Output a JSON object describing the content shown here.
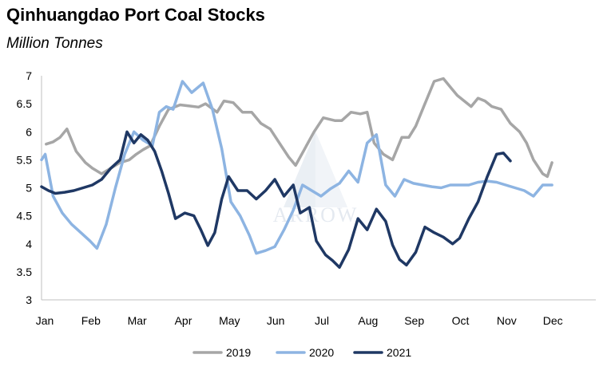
{
  "chart_data": {
    "type": "line",
    "title": "Qinhuangdao Port Coal Stocks",
    "subtitle": "Million Tonnes",
    "watermark": "ARROW",
    "xlabel": "",
    "ylabel": "",
    "ylim": [
      3,
      7
    ],
    "yticks": [
      "3",
      "3.5",
      "4",
      "4.5",
      "5",
      "5.5",
      "6",
      "6.5",
      "7"
    ],
    "xticks": [
      "Jan",
      "Feb",
      "Mar",
      "Apr",
      "May",
      "Jun",
      "Jul",
      "Aug",
      "Sep",
      "Oct",
      "Nov",
      "Dec"
    ],
    "grid": false,
    "legend": "bottom",
    "series": [
      {
        "name": "2019",
        "color": "#a6a6a6",
        "points": [
          [
            0.1,
            5.78
          ],
          [
            0.25,
            5.82
          ],
          [
            0.4,
            5.9
          ],
          [
            0.55,
            6.05
          ],
          [
            0.75,
            5.65
          ],
          [
            0.95,
            5.45
          ],
          [
            1.1,
            5.35
          ],
          [
            1.3,
            5.25
          ],
          [
            1.5,
            5.35
          ],
          [
            1.7,
            5.45
          ],
          [
            1.9,
            5.5
          ],
          [
            2.05,
            5.6
          ],
          [
            2.2,
            5.68
          ],
          [
            2.35,
            5.75
          ],
          [
            2.55,
            6.1
          ],
          [
            2.75,
            6.4
          ],
          [
            3.0,
            6.48
          ],
          [
            3.2,
            6.46
          ],
          [
            3.4,
            6.44
          ],
          [
            3.55,
            6.5
          ],
          [
            3.8,
            6.35
          ],
          [
            3.95,
            6.55
          ],
          [
            4.15,
            6.52
          ],
          [
            4.35,
            6.35
          ],
          [
            4.55,
            6.35
          ],
          [
            4.75,
            6.15
          ],
          [
            4.95,
            6.05
          ],
          [
            5.15,
            5.8
          ],
          [
            5.35,
            5.55
          ],
          [
            5.5,
            5.4
          ],
          [
            5.7,
            5.7
          ],
          [
            5.9,
            6.0
          ],
          [
            6.1,
            6.25
          ],
          [
            6.35,
            6.2
          ],
          [
            6.5,
            6.2
          ],
          [
            6.7,
            6.35
          ],
          [
            6.9,
            6.32
          ],
          [
            7.05,
            6.35
          ],
          [
            7.2,
            5.8
          ],
          [
            7.4,
            5.6
          ],
          [
            7.6,
            5.5
          ],
          [
            7.8,
            5.9
          ],
          [
            7.95,
            5.9
          ],
          [
            8.1,
            6.1
          ],
          [
            8.3,
            6.5
          ],
          [
            8.5,
            6.9
          ],
          [
            8.7,
            6.95
          ],
          [
            8.85,
            6.8
          ],
          [
            9.0,
            6.65
          ],
          [
            9.15,
            6.55
          ],
          [
            9.3,
            6.45
          ],
          [
            9.45,
            6.6
          ],
          [
            9.6,
            6.55
          ],
          [
            9.75,
            6.45
          ],
          [
            9.95,
            6.4
          ],
          [
            10.15,
            6.15
          ],
          [
            10.35,
            6.0
          ],
          [
            10.5,
            5.8
          ],
          [
            10.65,
            5.5
          ],
          [
            10.85,
            5.25
          ],
          [
            10.95,
            5.2
          ],
          [
            11.05,
            5.45
          ]
        ]
      },
      {
        "name": "2020",
        "color": "#8db4e2",
        "points": [
          [
            0.0,
            5.5
          ],
          [
            0.08,
            5.6
          ],
          [
            0.25,
            4.85
          ],
          [
            0.45,
            4.55
          ],
          [
            0.65,
            4.35
          ],
          [
            0.85,
            4.2
          ],
          [
            1.05,
            4.05
          ],
          [
            1.2,
            3.92
          ],
          [
            1.4,
            4.35
          ],
          [
            1.6,
            5.0
          ],
          [
            1.8,
            5.6
          ],
          [
            2.0,
            6.0
          ],
          [
            2.2,
            5.85
          ],
          [
            2.4,
            5.75
          ],
          [
            2.55,
            6.35
          ],
          [
            2.7,
            6.45
          ],
          [
            2.85,
            6.4
          ],
          [
            3.05,
            6.9
          ],
          [
            3.25,
            6.7
          ],
          [
            3.5,
            6.87
          ],
          [
            3.7,
            6.4
          ],
          [
            3.9,
            5.7
          ],
          [
            4.1,
            4.75
          ],
          [
            4.3,
            4.5
          ],
          [
            4.5,
            4.15
          ],
          [
            4.65,
            3.83
          ],
          [
            4.85,
            3.88
          ],
          [
            5.05,
            3.95
          ],
          [
            5.25,
            4.25
          ],
          [
            5.45,
            4.6
          ],
          [
            5.65,
            5.05
          ],
          [
            5.85,
            4.95
          ],
          [
            6.05,
            4.85
          ],
          [
            6.25,
            4.98
          ],
          [
            6.45,
            5.08
          ],
          [
            6.65,
            5.3
          ],
          [
            6.85,
            5.1
          ],
          [
            7.05,
            5.8
          ],
          [
            7.25,
            5.95
          ],
          [
            7.45,
            5.05
          ],
          [
            7.65,
            4.85
          ],
          [
            7.85,
            5.15
          ],
          [
            8.05,
            5.08
          ],
          [
            8.25,
            5.05
          ],
          [
            8.45,
            5.02
          ],
          [
            8.65,
            5.0
          ],
          [
            8.85,
            5.05
          ],
          [
            9.05,
            5.05
          ],
          [
            9.25,
            5.05
          ],
          [
            9.45,
            5.1
          ],
          [
            9.65,
            5.12
          ],
          [
            9.85,
            5.1
          ],
          [
            10.05,
            5.05
          ],
          [
            10.25,
            5.0
          ],
          [
            10.45,
            4.95
          ],
          [
            10.65,
            4.85
          ],
          [
            10.85,
            5.05
          ],
          [
            11.05,
            5.05
          ]
        ]
      },
      {
        "name": "2021",
        "color": "#1f3864",
        "points": [
          [
            0.0,
            5.02
          ],
          [
            0.15,
            4.95
          ],
          [
            0.3,
            4.9
          ],
          [
            0.5,
            4.92
          ],
          [
            0.7,
            4.95
          ],
          [
            0.9,
            5.0
          ],
          [
            1.1,
            5.05
          ],
          [
            1.3,
            5.15
          ],
          [
            1.5,
            5.35
          ],
          [
            1.7,
            5.5
          ],
          [
            1.85,
            6.0
          ],
          [
            2.0,
            5.8
          ],
          [
            2.15,
            5.95
          ],
          [
            2.3,
            5.85
          ],
          [
            2.45,
            5.65
          ],
          [
            2.6,
            5.3
          ],
          [
            2.75,
            4.9
          ],
          [
            2.9,
            4.45
          ],
          [
            3.1,
            4.55
          ],
          [
            3.3,
            4.5
          ],
          [
            3.45,
            4.25
          ],
          [
            3.6,
            3.97
          ],
          [
            3.75,
            4.2
          ],
          [
            3.9,
            4.8
          ],
          [
            4.05,
            5.2
          ],
          [
            4.25,
            4.95
          ],
          [
            4.45,
            4.95
          ],
          [
            4.65,
            4.8
          ],
          [
            4.85,
            4.95
          ],
          [
            5.05,
            5.15
          ],
          [
            5.25,
            4.85
          ],
          [
            5.45,
            5.05
          ],
          [
            5.6,
            4.55
          ],
          [
            5.8,
            4.65
          ],
          [
            5.95,
            4.05
          ],
          [
            6.15,
            3.8
          ],
          [
            6.3,
            3.7
          ],
          [
            6.45,
            3.58
          ],
          [
            6.65,
            3.9
          ],
          [
            6.85,
            4.45
          ],
          [
            7.05,
            4.25
          ],
          [
            7.25,
            4.62
          ],
          [
            7.45,
            4.4
          ],
          [
            7.6,
            3.98
          ],
          [
            7.75,
            3.72
          ],
          [
            7.9,
            3.62
          ],
          [
            8.1,
            3.85
          ],
          [
            8.3,
            4.3
          ],
          [
            8.5,
            4.2
          ],
          [
            8.7,
            4.12
          ],
          [
            8.9,
            4.0
          ],
          [
            9.05,
            4.1
          ],
          [
            9.25,
            4.45
          ],
          [
            9.45,
            4.75
          ],
          [
            9.65,
            5.2
          ],
          [
            9.85,
            5.6
          ],
          [
            10.0,
            5.62
          ],
          [
            10.15,
            5.48
          ]
        ]
      }
    ]
  }
}
